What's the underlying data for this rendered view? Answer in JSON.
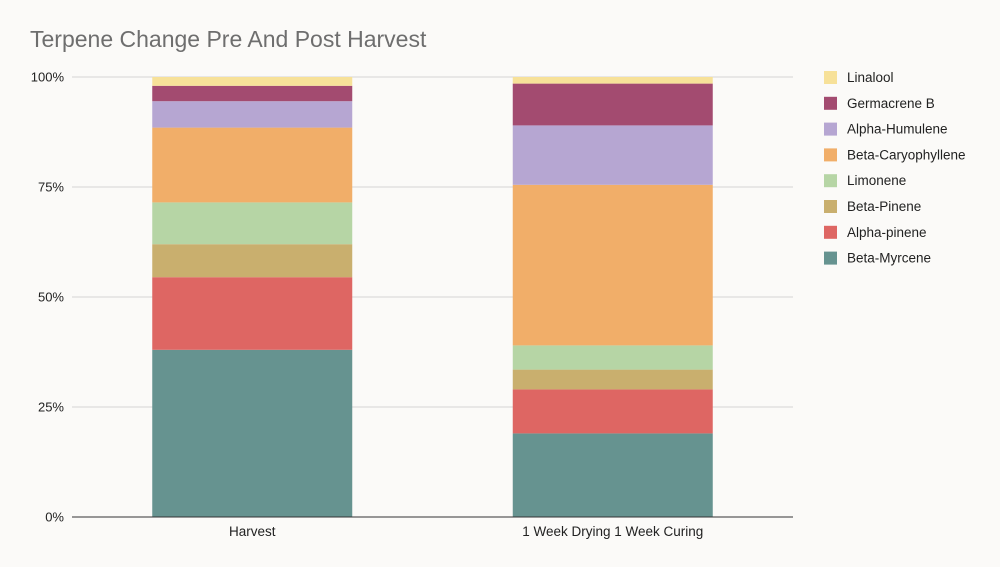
{
  "chart_data": {
    "type": "bar",
    "stacked": true,
    "normalized": true,
    "title": "Terpene Change Pre And Post Harvest",
    "xlabel": "",
    "ylabel": "",
    "categories": [
      "Harvest",
      "1 Week Drying 1 Week Curing"
    ],
    "ylim": [
      0,
      100
    ],
    "yticks": [
      0,
      25,
      50,
      75,
      100
    ],
    "ytick_labels": [
      "0%",
      "25%",
      "50%",
      "75%",
      "100%"
    ],
    "grid": true,
    "legend_position": "right",
    "series": [
      {
        "name": "Beta-Myrcene",
        "color": "#669390",
        "values": [
          38.0,
          19.0
        ]
      },
      {
        "name": "Alpha-pinene",
        "color": "#de6663",
        "values": [
          16.5,
          10.0
        ]
      },
      {
        "name": "Beta-Pinene",
        "color": "#c9af6e",
        "values": [
          7.5,
          4.5
        ]
      },
      {
        "name": "Limonene",
        "color": "#b6d5a5",
        "values": [
          9.5,
          5.5
        ]
      },
      {
        "name": "Beta-Caryophyllene",
        "color": "#f1ae69",
        "values": [
          17.0,
          36.5
        ]
      },
      {
        "name": "Alpha-Humulene",
        "color": "#b6a6d2",
        "values": [
          6.0,
          13.5
        ]
      },
      {
        "name": "Germacrene B",
        "color": "#a34b70",
        "values": [
          3.5,
          9.5
        ]
      },
      {
        "name": "Linalool",
        "color": "#f7e199",
        "values": [
          2.0,
          1.5
        ]
      }
    ]
  }
}
